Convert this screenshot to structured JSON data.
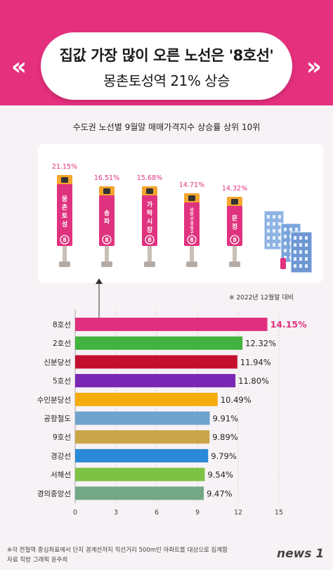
{
  "header": {
    "title_line1": "집값 가장 많이 오른 노선은 '8호선'",
    "title_line2": "몽촌토성역 21% 상승",
    "chev_left": "«",
    "chev_right": "»"
  },
  "subtitle": "수도권 노선별 9월말 매매가격지수 상승률 상위 10위",
  "stations": [
    {
      "name": "몽촌토성",
      "value": "21.15%",
      "line_badge": "8"
    },
    {
      "name": "송파",
      "value": "16.51%",
      "line_badge": "8"
    },
    {
      "name": "가락시장",
      "value": "15.68%",
      "line_badge": "8"
    },
    {
      "name": "남한산성입구",
      "value": "14.71%",
      "line_badge": "8"
    },
    {
      "name": "문정",
      "value": "14.32%",
      "line_badge": "8"
    }
  ],
  "note": "※ 2022년 12월말 대비",
  "colors": {
    "brand_pink": "#e4307d",
    "sign_pink": "#e0337f",
    "sign_yellow": "#f3a52d",
    "post": "#c9c0b8"
  },
  "chart_data": {
    "type": "bar",
    "orientation": "horizontal",
    "categories": [
      "8호선",
      "2호선",
      "신분당선",
      "5호선",
      "수인분당선",
      "공항철도",
      "9호선",
      "경강선",
      "서해선",
      "경의중앙선"
    ],
    "values": [
      14.15,
      12.32,
      11.94,
      11.8,
      10.49,
      9.91,
      9.89,
      9.79,
      9.54,
      9.47
    ],
    "value_labels": [
      "14.15%",
      "12.32%",
      "11.94%",
      "11.80%",
      "10.49%",
      "9.91%",
      "9.89%",
      "9.79%",
      "9.54%",
      "9.47%"
    ],
    "bar_colors": [
      "#e0307d",
      "#43b33f",
      "#c4102e",
      "#7a27b5",
      "#f5ad0c",
      "#6ea3cd",
      "#c9a449",
      "#2b8ad8",
      "#7dc244",
      "#73a886"
    ],
    "xticks": [
      0,
      3,
      6,
      9,
      12,
      15
    ],
    "xlim": [
      0,
      15
    ],
    "grid": true,
    "xlabel": "",
    "ylabel": "",
    "title": "수도권 노선별 9월말 매매가격지수 상승률 상위 10위"
  },
  "footer": {
    "line1": "※각 전철역 중심좌표에서 단지 경계선까지 직선거리 500m인 아파트를 대상으로 집계함",
    "line2": "자료 직방  그래픽 윤주희",
    "logo": "news 1"
  }
}
